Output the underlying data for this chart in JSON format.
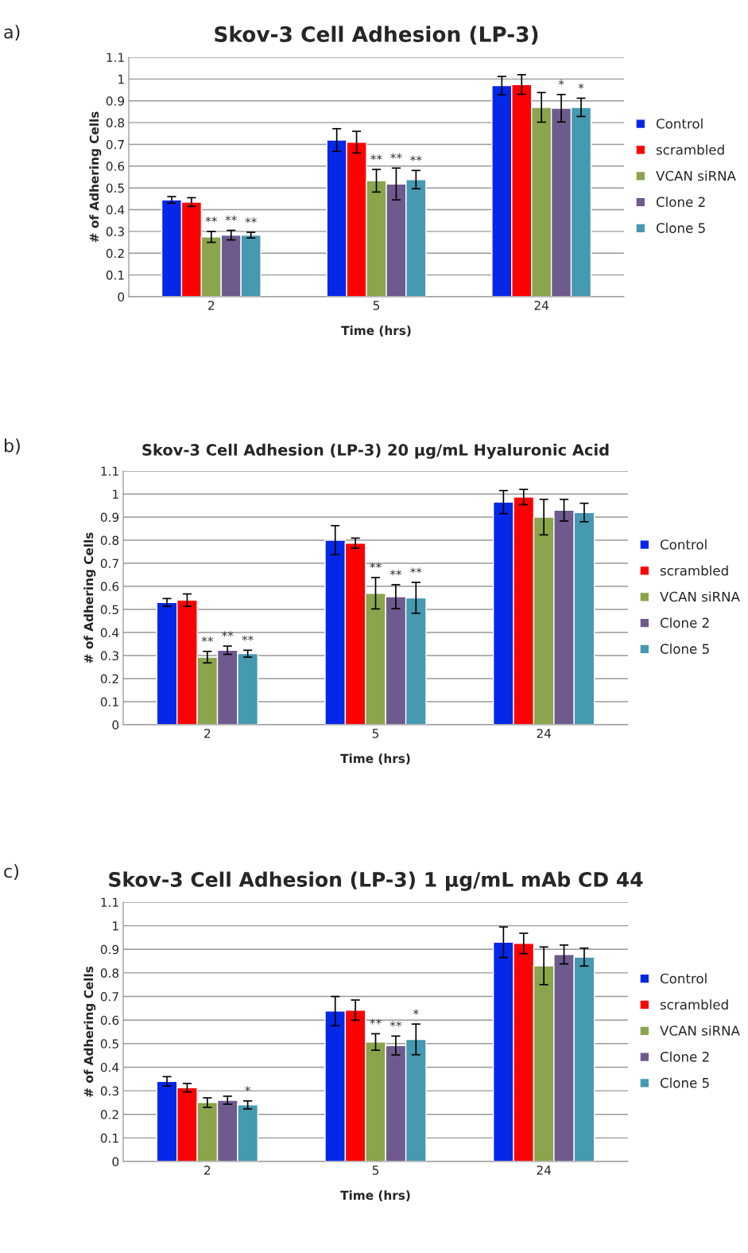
{
  "chart_data": [
    {
      "type": "bar",
      "title": "Skov-3 Cell Adhesion (LP-3)",
      "xlabel": "Time (hrs)",
      "ylabel": "# of Adhering Cells",
      "categories": [
        "2",
        "5",
        "24"
      ],
      "ylim": [
        0,
        1.1
      ],
      "yticks": [
        0,
        0.1,
        0.2,
        0.3,
        0.4,
        0.5,
        0.6,
        0.7,
        0.8,
        0.9,
        1,
        1.1
      ],
      "grid": "y",
      "legend": "right",
      "series": [
        {
          "name": "Control",
          "color": "#0527e8",
          "values": [
            0.445,
            0.72,
            0.97
          ],
          "errors": [
            0.015,
            0.052,
            0.042
          ]
        },
        {
          "name": "scrambled",
          "color": "#ff0000",
          "values": [
            0.435,
            0.71,
            0.975
          ],
          "errors": [
            0.02,
            0.05,
            0.045
          ]
        },
        {
          "name": "VCAN siRNA",
          "color": "#8aa54b",
          "values": [
            0.275,
            0.533,
            0.87
          ],
          "errors": [
            0.025,
            0.052,
            0.068
          ],
          "value_labels": [
            "**",
            "**",
            null
          ]
        },
        {
          "name": "Clone 2",
          "color": "#6f5a8e",
          "values": [
            0.283,
            0.518,
            0.866
          ],
          "errors": [
            0.022,
            0.073,
            0.063
          ],
          "value_labels": [
            "**",
            "**",
            "*"
          ]
        },
        {
          "name": "Clone 5",
          "color": "#4599b0",
          "values": [
            0.283,
            0.538,
            0.87
          ],
          "errors": [
            0.013,
            0.042,
            0.042
          ],
          "value_labels": [
            "**",
            "**",
            "*"
          ]
        }
      ],
      "annotations": [
        "a)"
      ]
    },
    {
      "type": "bar",
      "title": "Skov-3 Cell Adhesion (LP-3) 20 µg/mL Hyaluronic Acid",
      "xlabel": "Time (hrs)",
      "ylabel": "# of Adhering Cells",
      "categories": [
        "2",
        "5",
        "24"
      ],
      "ylim": [
        0,
        1.1
      ],
      "yticks": [
        0,
        0.1,
        0.2,
        0.3,
        0.4,
        0.5,
        0.6,
        0.7,
        0.8,
        0.9,
        1,
        1.1
      ],
      "grid": "y",
      "legend": "right",
      "series": [
        {
          "name": "Control",
          "color": "#0527e8",
          "values": [
            0.53,
            0.8,
            0.965
          ],
          "errors": [
            0.017,
            0.063,
            0.05
          ]
        },
        {
          "name": "scrambled",
          "color": "#ff0000",
          "values": [
            0.54,
            0.787,
            0.987
          ],
          "errors": [
            0.027,
            0.022,
            0.033
          ]
        },
        {
          "name": "VCAN siRNA",
          "color": "#8aa54b",
          "values": [
            0.293,
            0.57,
            0.9
          ],
          "errors": [
            0.025,
            0.068,
            0.077
          ],
          "value_labels": [
            "**",
            "**",
            null
          ]
        },
        {
          "name": "Clone 2",
          "color": "#6f5a8e",
          "values": [
            0.323,
            0.555,
            0.93
          ],
          "errors": [
            0.018,
            0.052,
            0.047
          ],
          "value_labels": [
            "**",
            "**",
            null
          ]
        },
        {
          "name": "Clone 5",
          "color": "#4599b0",
          "values": [
            0.308,
            0.55,
            0.92
          ],
          "errors": [
            0.015,
            0.067,
            0.04
          ],
          "value_labels": [
            "**",
            "**",
            null
          ]
        }
      ],
      "annotations": [
        "b)"
      ]
    },
    {
      "type": "bar",
      "title": "Skov-3 Cell Adhesion (LP-3) 1 µg/mL mAb CD 44",
      "xlabel": "Time (hrs)",
      "ylabel": "# of Adhering Cells",
      "categories": [
        "2",
        "5",
        "24"
      ],
      "ylim": [
        0,
        1.1
      ],
      "yticks": [
        0,
        0.1,
        0.2,
        0.3,
        0.4,
        0.5,
        0.6,
        0.7,
        0.8,
        0.9,
        1,
        1.1
      ],
      "grid": "y",
      "legend": "right",
      "series": [
        {
          "name": "Control",
          "color": "#0527e8",
          "values": [
            0.34,
            0.638,
            0.93
          ],
          "errors": [
            0.02,
            0.062,
            0.065
          ]
        },
        {
          "name": "scrambled",
          "color": "#ff0000",
          "values": [
            0.313,
            0.642,
            0.925
          ],
          "errors": [
            0.018,
            0.043,
            0.043
          ]
        },
        {
          "name": "VCAN siRNA",
          "color": "#8aa54b",
          "values": [
            0.25,
            0.507,
            0.83
          ],
          "errors": [
            0.02,
            0.035,
            0.08
          ],
          "value_labels": [
            null,
            "**",
            null
          ]
        },
        {
          "name": "Clone 2",
          "color": "#6f5a8e",
          "values": [
            0.26,
            0.492,
            0.878
          ],
          "errors": [
            0.017,
            0.04,
            0.04
          ],
          "value_labels": [
            null,
            "**",
            null
          ]
        },
        {
          "name": "Clone 5",
          "color": "#4599b0",
          "values": [
            0.24,
            0.518,
            0.867
          ],
          "errors": [
            0.017,
            0.065,
            0.038
          ],
          "value_labels": [
            "*",
            "*",
            null
          ]
        }
      ],
      "annotations": [
        "c)"
      ]
    }
  ]
}
